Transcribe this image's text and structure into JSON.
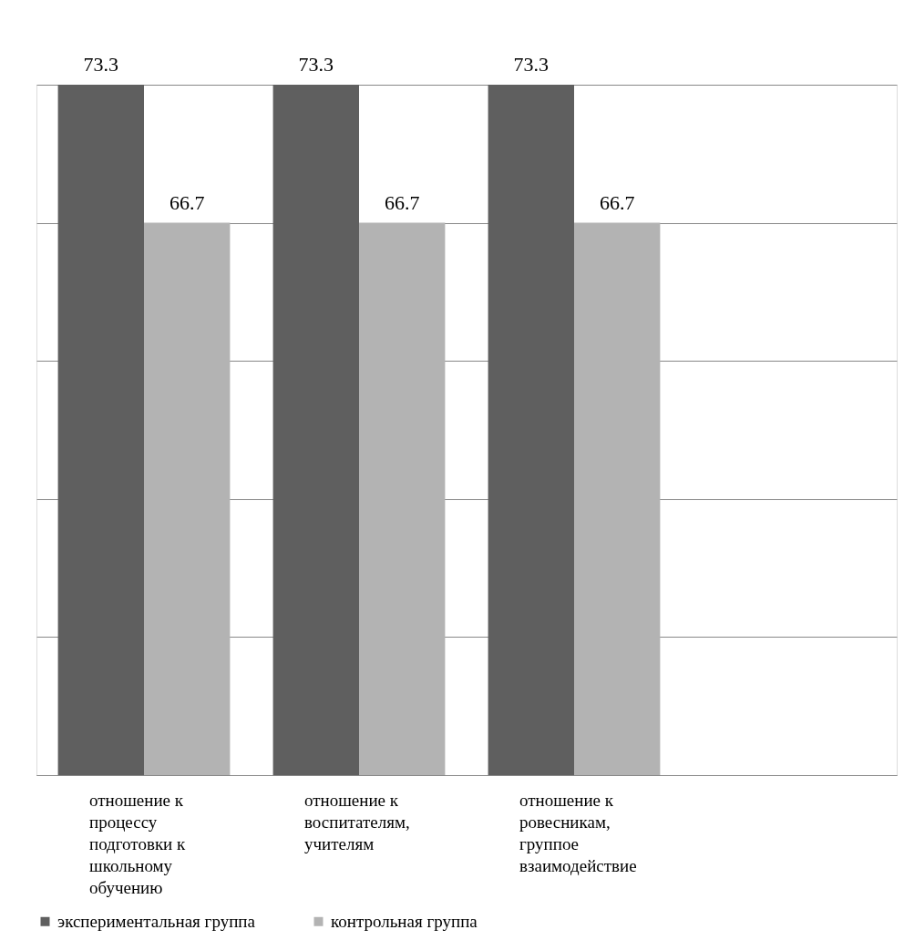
{
  "chart_data": {
    "type": "bar",
    "categories": [
      "отношение к процессу подготовки к школьному обучению",
      "отношение к воспитателям, учителям",
      "отношение к ровесникам, группое взаимодействие",
      null
    ],
    "series": [
      {
        "name": "экспериментальная группа",
        "color": "#5f5f5f",
        "values": [
          73.3,
          73.3,
          73.3,
          null
        ]
      },
      {
        "name": "контрольная группа",
        "color": "#b3b3b3",
        "values": [
          66.7,
          66.7,
          66.7,
          null
        ]
      }
    ],
    "ylim": [
      40.3,
      73.3
    ],
    "yticks": [
      {
        "value": 40.3,
        "label": null
      },
      {
        "value": 46.9,
        "label": null
      },
      {
        "value": 53.5,
        "label": null
      },
      {
        "value": 60.1,
        "label": null
      },
      {
        "value": 66.7,
        "label": null
      },
      {
        "value": 73.3,
        "label": null
      }
    ],
    "tick_labels": "x",
    "grid": "y",
    "data_labels": true,
    "legend": "bottom"
  }
}
